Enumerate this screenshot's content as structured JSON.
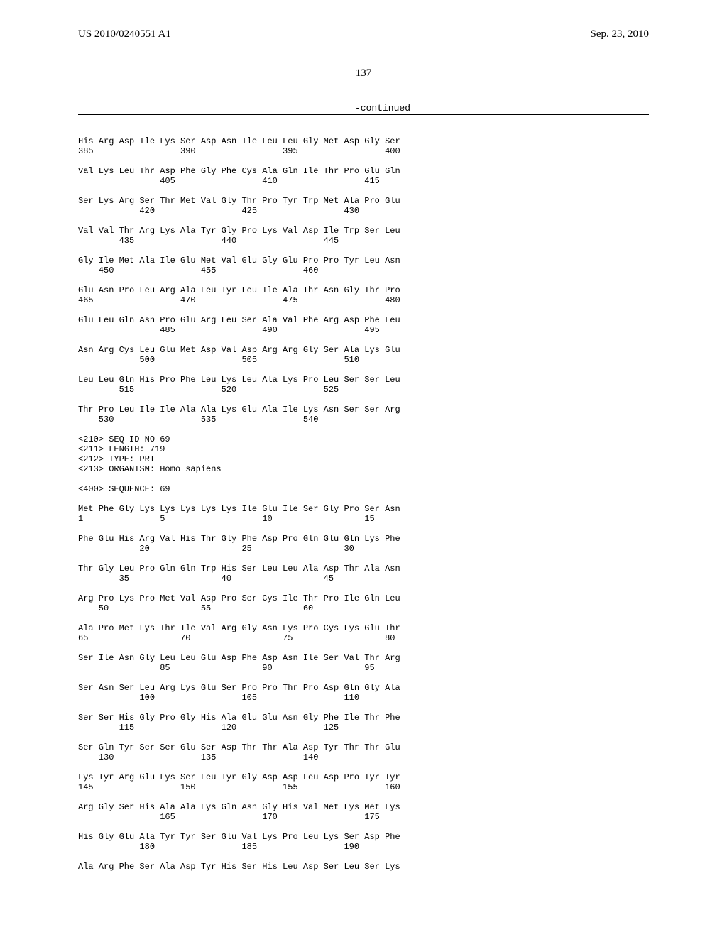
{
  "header": {
    "patent_number": "US 2010/0240551 A1",
    "date": "Sep. 23, 2010",
    "page_number": "137",
    "continued": "-continued"
  },
  "seq_meta": {
    "line1": "<210> SEQ ID NO 69",
    "line2": "<211> LENGTH: 719",
    "line3": "<212> TYPE: PRT",
    "line4": "<213> ORGANISM: Homo sapiens",
    "line5": "<400> SEQUENCE: 69"
  },
  "rows": [
    {
      "aa": "His Arg Asp Ile Lys Ser Asp Asn Ile Leu Leu Gly Met Asp Gly Ser",
      "nm": "385                 390                 395                 400"
    },
    {
      "aa": "Val Lys Leu Thr Asp Phe Gly Phe Cys Ala Gln Ile Thr Pro Glu Gln",
      "nm": "                405                 410                 415"
    },
    {
      "aa": "Ser Lys Arg Ser Thr Met Val Gly Thr Pro Tyr Trp Met Ala Pro Glu",
      "nm": "            420                 425                 430"
    },
    {
      "aa": "Val Val Thr Arg Lys Ala Tyr Gly Pro Lys Val Asp Ile Trp Ser Leu",
      "nm": "        435                 440                 445"
    },
    {
      "aa": "Gly Ile Met Ala Ile Glu Met Val Glu Gly Glu Pro Pro Tyr Leu Asn",
      "nm": "    450                 455                 460"
    },
    {
      "aa": "Glu Asn Pro Leu Arg Ala Leu Tyr Leu Ile Ala Thr Asn Gly Thr Pro",
      "nm": "465                 470                 475                 480"
    },
    {
      "aa": "Glu Leu Gln Asn Pro Glu Arg Leu Ser Ala Val Phe Arg Asp Phe Leu",
      "nm": "                485                 490                 495"
    },
    {
      "aa": "Asn Arg Cys Leu Glu Met Asp Val Asp Arg Arg Gly Ser Ala Lys Glu",
      "nm": "            500                 505                 510"
    },
    {
      "aa": "Leu Leu Gln His Pro Phe Leu Lys Leu Ala Lys Pro Leu Ser Ser Leu",
      "nm": "        515                 520                 525"
    },
    {
      "aa": "Thr Pro Leu Ile Ile Ala Ala Lys Glu Ala Ile Lys Asn Ser Ser Arg",
      "nm": "    530                 535                 540"
    }
  ],
  "rows2": [
    {
      "aa": "Met Phe Gly Lys Lys Lys Lys Lys Ile Glu Ile Ser Gly Pro Ser Asn",
      "nm": "1               5                   10                  15"
    },
    {
      "aa": "Phe Glu His Arg Val His Thr Gly Phe Asp Pro Gln Glu Gln Lys Phe",
      "nm": "            20                  25                  30"
    },
    {
      "aa": "Thr Gly Leu Pro Gln Gln Trp His Ser Leu Leu Ala Asp Thr Ala Asn",
      "nm": "        35                  40                  45"
    },
    {
      "aa": "Arg Pro Lys Pro Met Val Asp Pro Ser Cys Ile Thr Pro Ile Gln Leu",
      "nm": "    50                  55                  60"
    },
    {
      "aa": "Ala Pro Met Lys Thr Ile Val Arg Gly Asn Lys Pro Cys Lys Glu Thr",
      "nm": "65                  70                  75                  80"
    },
    {
      "aa": "Ser Ile Asn Gly Leu Leu Glu Asp Phe Asp Asn Ile Ser Val Thr Arg",
      "nm": "                85                  90                  95"
    },
    {
      "aa": "Ser Asn Ser Leu Arg Lys Glu Ser Pro Pro Thr Pro Asp Gln Gly Ala",
      "nm": "            100                 105                 110"
    },
    {
      "aa": "Ser Ser His Gly Pro Gly His Ala Glu Glu Asn Gly Phe Ile Thr Phe",
      "nm": "        115                 120                 125"
    },
    {
      "aa": "Ser Gln Tyr Ser Ser Glu Ser Asp Thr Thr Ala Asp Tyr Thr Thr Glu",
      "nm": "    130                 135                 140"
    },
    {
      "aa": "Lys Tyr Arg Glu Lys Ser Leu Tyr Gly Asp Asp Leu Asp Pro Tyr Tyr",
      "nm": "145                 150                 155                 160"
    },
    {
      "aa": "Arg Gly Ser His Ala Ala Lys Gln Asn Gly His Val Met Lys Met Lys",
      "nm": "                165                 170                 175"
    },
    {
      "aa": "His Gly Glu Ala Tyr Tyr Ser Glu Val Lys Pro Leu Lys Ser Asp Phe",
      "nm": "            180                 185                 190"
    },
    {
      "aa": "Ala Arg Phe Ser Ala Asp Tyr His Ser His Leu Asp Ser Leu Ser Lys",
      "nm": ""
    }
  ]
}
